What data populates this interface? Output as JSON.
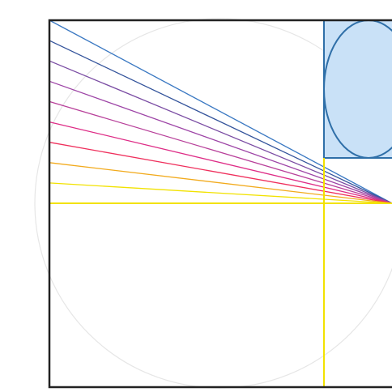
{
  "diagram": {
    "colors": {
      "background": "#ffffff",
      "frame": "#222222",
      "guide_circle": "#e6e6e6",
      "crosshair": "#f2e200",
      "rect_fill": "#c9e1f7",
      "rect_stroke": "#2f6fa8",
      "ellipse_stroke": "#2f6fa8"
    },
    "ray_colors": [
      "#3a78c2",
      "#33539b",
      "#7a4ca3",
      "#9d44a6",
      "#b8409a",
      "#de2c86",
      "#ef2f5c",
      "#f2aa1c",
      "#f2e200"
    ],
    "ray_count": 9
  }
}
